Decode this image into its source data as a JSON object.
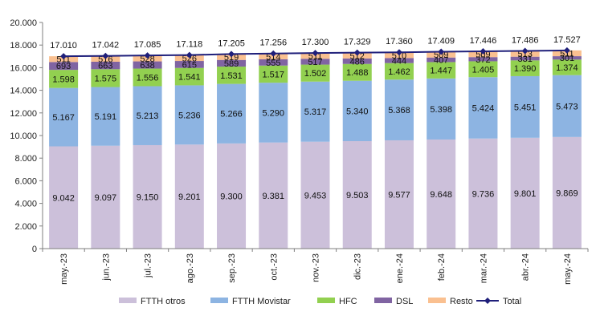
{
  "chart_data": {
    "type": "bar",
    "stacked": true,
    "categories": [
      "may.-23",
      "jun.-23",
      "jul.-23",
      "ago.-23",
      "sep.-23",
      "oct.-23",
      "nov.-23",
      "dic.-23",
      "ene.-24",
      "feb.-24",
      "mar.-24",
      "abr.-24",
      "may.-24"
    ],
    "ylim": [
      0,
      20000
    ],
    "yticks": [
      "0",
      "2.000",
      "4.000",
      "6.000",
      "8.000",
      "10.000",
      "12.000",
      "14.000",
      "16.000",
      "18.000",
      "20.000"
    ],
    "ytick_values": [
      0,
      2000,
      4000,
      6000,
      8000,
      10000,
      12000,
      14000,
      16000,
      18000,
      20000
    ],
    "grid": false,
    "legend_position": "bottom",
    "series": [
      {
        "name": "FTTH otros",
        "color": "#ccc0da",
        "values": [
          9042,
          9097,
          9150,
          9201,
          9300,
          9381,
          9453,
          9503,
          9577,
          9648,
          9736,
          9801,
          9869
        ],
        "labels": [
          "9.042",
          "9.097",
          "9.150",
          "9.201",
          "9.300",
          "9.381",
          "9.453",
          "9.503",
          "9.577",
          "9.648",
          "9.736",
          "9.801",
          "9.869"
        ]
      },
      {
        "name": "FTTH Movistar",
        "color": "#8db4e2",
        "values": [
          5167,
          5191,
          5213,
          5236,
          5266,
          5290,
          5317,
          5340,
          5368,
          5398,
          5424,
          5451,
          5473
        ],
        "labels": [
          "5.167",
          "5.191",
          "5.213",
          "5.236",
          "5.266",
          "5.290",
          "5.317",
          "5.340",
          "5.368",
          "5.398",
          "5.424",
          "5.451",
          "5.473"
        ]
      },
      {
        "name": "HFC",
        "color": "#92d050",
        "values": [
          1598,
          1575,
          1556,
          1541,
          1531,
          1517,
          1502,
          1488,
          1462,
          1447,
          1405,
          1390,
          1374
        ],
        "labels": [
          "1.598",
          "1.575",
          "1.556",
          "1.541",
          "1.531",
          "1.517",
          "1.502",
          "1.488",
          "1.462",
          "1.447",
          "1.405",
          "1.390",
          "1.374"
        ]
      },
      {
        "name": "DSL",
        "color": "#8064a2",
        "values": [
          693,
          663,
          638,
          615,
          589,
          555,
          517,
          486,
          444,
          407,
          372,
          331,
          301
        ],
        "labels": [
          "693",
          "663",
          "638",
          "615",
          "589",
          "555",
          "517",
          "486",
          "444",
          "407",
          "372",
          "331",
          "301"
        ]
      },
      {
        "name": "Resto",
        "color": "#fac090",
        "values": [
          511,
          516,
          528,
          526,
          519,
          514,
          511,
          512,
          510,
          509,
          509,
          513,
          511
        ],
        "labels": [
          "511",
          "516",
          "528",
          "526",
          "519",
          "514",
          "511",
          "512",
          "510",
          "509",
          "509",
          "513",
          "511"
        ]
      }
    ],
    "total": {
      "name": "Total",
      "color": "#1f1f7a",
      "values": [
        17010,
        17042,
        17085,
        17118,
        17205,
        17256,
        17300,
        17329,
        17360,
        17409,
        17446,
        17486,
        17527
      ],
      "labels": [
        "17.010",
        "17.042",
        "17.085",
        "17.118",
        "17.205",
        "17.256",
        "17.300",
        "17.329",
        "17.360",
        "17.409",
        "17.446",
        "17.486",
        "17.527"
      ]
    }
  }
}
